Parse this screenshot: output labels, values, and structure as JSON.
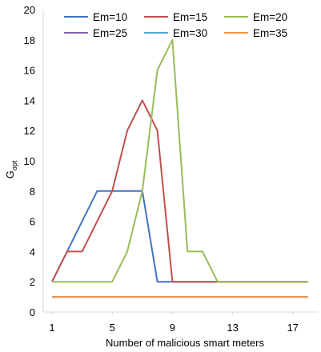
{
  "chart_data": {
    "type": "line",
    "title": "",
    "xlabel": "Number of malicious smart meters",
    "ylabel": "G",
    "ylabel_subscript": "opt",
    "xlim": [
      1,
      18
    ],
    "ylim": [
      0,
      20
    ],
    "xticks": [
      1,
      5,
      9,
      13,
      17
    ],
    "yticks": [
      0,
      2,
      4,
      6,
      8,
      10,
      12,
      14,
      16,
      18,
      20
    ],
    "grid": false,
    "legend_placement": "top",
    "x": [
      1,
      2,
      3,
      4,
      5,
      6,
      7,
      8,
      9,
      10,
      11,
      12,
      13,
      14,
      15,
      16,
      17,
      18
    ],
    "series": [
      {
        "name": "Em=10",
        "color": "#4472c4",
        "values": [
          2,
          4,
          6,
          8,
          8,
          8,
          8,
          2,
          2,
          2,
          2,
          2,
          2,
          2,
          2,
          2,
          2,
          2
        ]
      },
      {
        "name": "Em=15",
        "color": "#c0504d",
        "values": [
          2,
          4,
          4,
          6,
          8,
          12,
          14,
          12,
          2,
          2,
          2,
          2,
          2,
          2,
          2,
          2,
          2,
          2
        ]
      },
      {
        "name": "Em=20",
        "color": "#9bbb59",
        "values": [
          2,
          2,
          2,
          2,
          2,
          4,
          8,
          16,
          18,
          4,
          4,
          2,
          2,
          2,
          2,
          2,
          2,
          2
        ]
      },
      {
        "name": "Em=25",
        "color": "#8064a2",
        "values": [
          1,
          1,
          1,
          1,
          1,
          1,
          1,
          1,
          1,
          1,
          1,
          1,
          1,
          1,
          1,
          1,
          1,
          1
        ]
      },
      {
        "name": "Em=30",
        "color": "#4bacc6",
        "values": [
          1,
          1,
          1,
          1,
          1,
          1,
          1,
          1,
          1,
          1,
          1,
          1,
          1,
          1,
          1,
          1,
          1,
          1
        ]
      },
      {
        "name": "Em=35",
        "color": "#f79646",
        "values": [
          1,
          1,
          1,
          1,
          1,
          1,
          1,
          1,
          1,
          1,
          1,
          1,
          1,
          1,
          1,
          1,
          1,
          1
        ]
      }
    ]
  }
}
